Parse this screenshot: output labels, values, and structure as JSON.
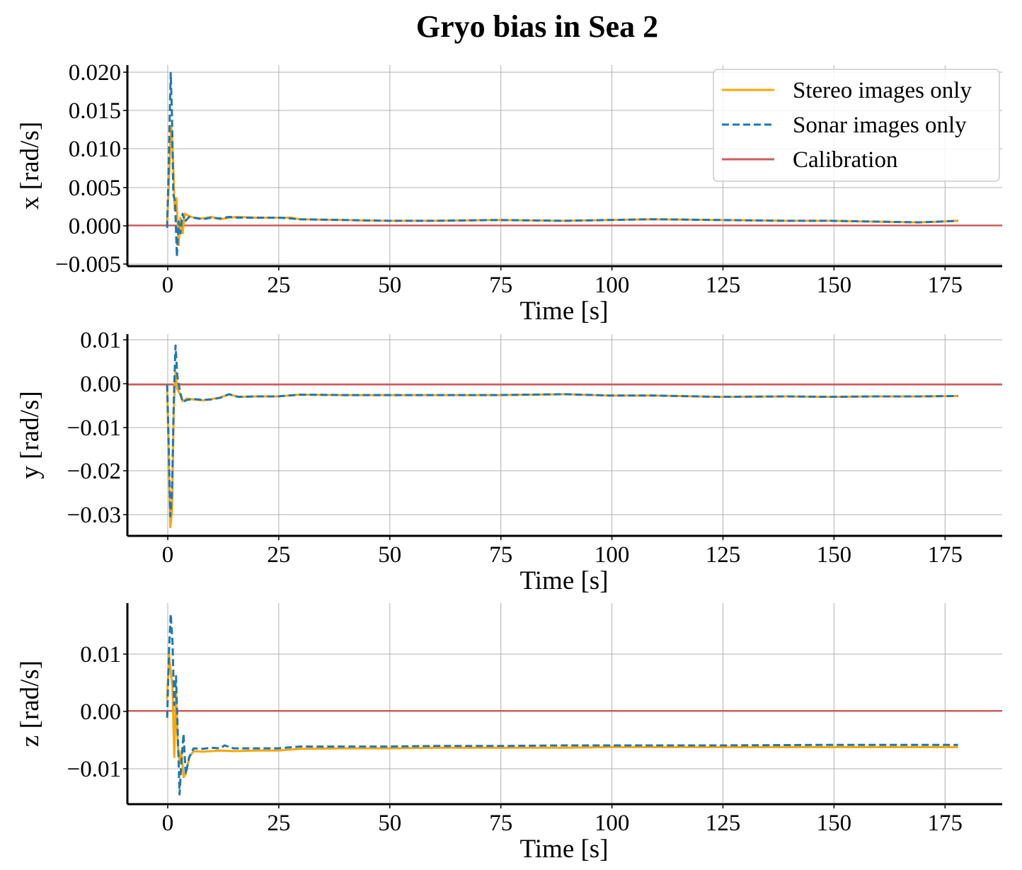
{
  "title": "Gryo bias in Sea 2",
  "colors": {
    "stereo": "#ffa500",
    "sonar": "#1f77b4",
    "calibration": "#cd5c5c",
    "grid": "#b0b0b0"
  },
  "chart_data": [
    {
      "type": "line",
      "ylabel": "x [rad/s]",
      "xlabel": "Time [s]",
      "xlim": [
        -9,
        189
      ],
      "ylim": [
        -0.0052,
        0.0205
      ],
      "xticks": [
        "0",
        "25",
        "50",
        "75",
        "100",
        "125",
        "150",
        "175"
      ],
      "yticks": [
        "0.020",
        "0.015",
        "0.010",
        "0.005",
        "0.000",
        "−0.005"
      ],
      "grid": true,
      "legend": {
        "placement": "top-right",
        "entries": [
          "Stereo images only",
          "Sonar images only",
          "Calibration"
        ]
      },
      "series": [
        {
          "name": "Stereo images only",
          "style": "solid",
          "x": [
            0,
            0.5,
            0.9,
            1.3,
            1.7,
            2.1,
            2.6,
            3,
            3.5,
            4,
            5,
            6,
            8,
            10,
            12,
            14,
            16,
            20,
            25,
            28,
            30,
            40,
            50,
            60,
            75,
            90,
            100,
            110,
            125,
            140,
            150,
            160,
            170,
            175,
            179
          ],
          "y": [
            0.0005,
            0.007,
            0.0128,
            0.009,
            0.002,
            0.0035,
            -0.0025,
            0.001,
            -0.001,
            0.0015,
            0.0012,
            0.001,
            0.0009,
            0.0011,
            0.0008,
            0.001,
            0.0011,
            0.001,
            0.001,
            0.001,
            0.0008,
            0.0007,
            0.0006,
            0.0006,
            0.0007,
            0.0006,
            0.0007,
            0.0008,
            0.0007,
            0.0006,
            0.0006,
            0.0005,
            0.0004,
            0.0005,
            0.0006
          ]
        },
        {
          "name": "Sonar images only",
          "style": "dashed",
          "x": [
            0,
            0.4,
            0.8,
            1.1,
            1.4,
            1.8,
            2.2,
            2.6,
            3,
            3.5,
            4,
            5,
            6,
            8,
            10,
            12,
            14,
            16,
            20,
            25,
            28,
            30,
            40,
            50,
            60,
            75,
            90,
            100,
            110,
            125,
            140,
            150,
            160,
            170,
            175,
            179
          ],
          "y": [
            -0.0003,
            0.009,
            0.0195,
            0.014,
            0.004,
            0.003,
            -0.004,
            0.0005,
            -0.001,
            0.0015,
            0.0005,
            0.0011,
            0.001,
            0.0008,
            0.001,
            0.0009,
            0.0011,
            0.001,
            0.001,
            0.001,
            0.0009,
            0.0008,
            0.0007,
            0.0006,
            0.0006,
            0.0007,
            0.0006,
            0.0007,
            0.0008,
            0.0007,
            0.0006,
            0.0006,
            0.0005,
            0.0004,
            0.0005,
            0.0006
          ]
        },
        {
          "name": "Calibration",
          "style": "solid",
          "x": [
            -9,
            189
          ],
          "y": [
            0,
            0
          ]
        }
      ]
    },
    {
      "type": "line",
      "ylabel": "y [rad/s]",
      "xlabel": "Time [s]",
      "xlim": [
        -9,
        189
      ],
      "ylim": [
        -0.0345,
        0.0115
      ],
      "xticks": [
        "0",
        "25",
        "50",
        "75",
        "100",
        "125",
        "150",
        "175"
      ],
      "yticks": [
        "0.01",
        "0.00",
        "−0.01",
        "−0.02",
        "−0.03"
      ],
      "grid": true,
      "series": [
        {
          "name": "Stereo images only",
          "style": "solid",
          "x": [
            0,
            0.3,
            0.7,
            1.1,
            1.5,
            1.9,
            2.3,
            2.8,
            3.5,
            4.5,
            6,
            8,
            10,
            12,
            14,
            16,
            20,
            25,
            30,
            40,
            50,
            60,
            75,
            90,
            100,
            110,
            125,
            140,
            150,
            160,
            170,
            179
          ],
          "y": [
            0,
            -0.015,
            -0.0325,
            -0.029,
            -0.006,
            0.003,
            -0.001,
            -0.002,
            -0.0038,
            -0.0032,
            -0.0034,
            -0.0036,
            -0.0033,
            -0.003,
            -0.0022,
            -0.0028,
            -0.0027,
            -0.0027,
            -0.0023,
            -0.0024,
            -0.0024,
            -0.0024,
            -0.0024,
            -0.0022,
            -0.0025,
            -0.0025,
            -0.0028,
            -0.0027,
            -0.0028,
            -0.0027,
            -0.0027,
            -0.0026
          ]
        },
        {
          "name": "Sonar images only",
          "style": "dashed",
          "x": [
            0,
            0.3,
            0.7,
            1.1,
            1.5,
            1.9,
            2.3,
            2.8,
            3.5,
            4.5,
            6,
            8,
            10,
            12,
            14,
            16,
            20,
            25,
            30,
            40,
            50,
            60,
            75,
            90,
            100,
            110,
            125,
            140,
            150,
            160,
            170,
            179
          ],
          "y": [
            0,
            -0.012,
            -0.03,
            -0.025,
            -0.004,
            0.0089,
            0.002,
            -0.001,
            -0.004,
            -0.0035,
            -0.0033,
            -0.0035,
            -0.0034,
            -0.003,
            -0.0022,
            -0.0028,
            -0.0027,
            -0.0027,
            -0.0023,
            -0.0024,
            -0.0024,
            -0.0024,
            -0.0024,
            -0.0022,
            -0.0025,
            -0.0025,
            -0.0028,
            -0.0027,
            -0.0028,
            -0.0027,
            -0.0027,
            -0.0026
          ]
        },
        {
          "name": "Calibration",
          "style": "solid",
          "x": [
            -9,
            189
          ],
          "y": [
            0,
            0
          ]
        }
      ]
    },
    {
      "type": "line",
      "ylabel": "z [rad/s]",
      "xlabel": "Time [s]",
      "xlim": [
        -9,
        189
      ],
      "ylim": [
        -0.0162,
        0.0187
      ],
      "xticks": [
        "0",
        "25",
        "50",
        "75",
        "100",
        "125",
        "150",
        "175"
      ],
      "yticks": [
        "0.01",
        "0.00",
        "−0.01"
      ],
      "grid": true,
      "series": [
        {
          "name": "Stereo images only",
          "style": "solid",
          "x": [
            0,
            0.4,
            0.8,
            1.2,
            1.6,
            2.0,
            2.4,
            2.8,
            3.2,
            3.7,
            4.2,
            5,
            6,
            8,
            10,
            12,
            15,
            20,
            25,
            30,
            40,
            50,
            60,
            75,
            90,
            100,
            125,
            150,
            175,
            179
          ],
          "y": [
            0.002,
            0.01,
            0.007,
            0.004,
            -0.008,
            0.003,
            -0.006,
            -0.009,
            -0.007,
            -0.0115,
            -0.011,
            -0.008,
            -0.007,
            -0.0071,
            -0.007,
            -0.0069,
            -0.007,
            -0.0069,
            -0.0069,
            -0.0066,
            -0.0065,
            -0.0065,
            -0.0064,
            -0.0064,
            -0.0064,
            -0.0063,
            -0.0063,
            -0.0063,
            -0.0063,
            -0.0063
          ]
        },
        {
          "name": "Sonar images only",
          "style": "dashed",
          "x": [
            0,
            0.4,
            0.8,
            1.2,
            1.6,
            2.0,
            2.4,
            2.8,
            3.2,
            3.7,
            4.2,
            5,
            6,
            8,
            10,
            12,
            13,
            15,
            20,
            25,
            30,
            40,
            50,
            60,
            75,
            90,
            100,
            125,
            150,
            175,
            179
          ],
          "y": [
            -0.0012,
            0.01,
            0.0168,
            0.012,
            0.001,
            0.006,
            -0.004,
            -0.0145,
            -0.009,
            -0.004,
            -0.011,
            -0.008,
            -0.0065,
            -0.0066,
            -0.0064,
            -0.0065,
            -0.006,
            -0.0065,
            -0.0065,
            -0.0065,
            -0.0062,
            -0.0062,
            -0.0062,
            -0.0061,
            -0.0061,
            -0.006,
            -0.006,
            -0.006,
            -0.0059,
            -0.0059,
            -0.0059
          ]
        },
        {
          "name": "Calibration",
          "style": "solid",
          "x": [
            -9,
            189
          ],
          "y": [
            0,
            0
          ]
        }
      ]
    }
  ]
}
